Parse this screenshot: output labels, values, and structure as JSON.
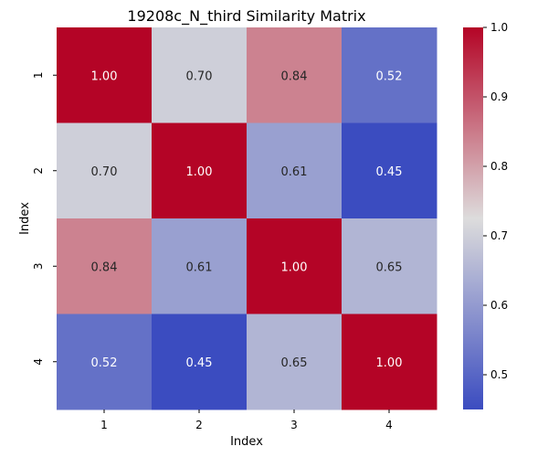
{
  "chart_data": {
    "type": "heatmap",
    "title": "19208c_N_third Similarity Matrix",
    "xlabel": "Index",
    "ylabel": "Index",
    "x_categories": [
      "1",
      "2",
      "3",
      "4"
    ],
    "y_categories": [
      "1",
      "2",
      "3",
      "4"
    ],
    "values": [
      [
        1.0,
        0.7,
        0.84,
        0.52
      ],
      [
        0.7,
        1.0,
        0.61,
        0.45
      ],
      [
        0.84,
        0.61,
        1.0,
        0.65
      ],
      [
        0.52,
        0.45,
        0.65,
        1.0
      ]
    ],
    "value_labels": [
      [
        "1.00",
        "0.70",
        "0.84",
        "0.52"
      ],
      [
        "0.70",
        "1.00",
        "0.61",
        "0.45"
      ],
      [
        "0.84",
        "0.61",
        "1.00",
        "0.65"
      ],
      [
        "0.52",
        "0.45",
        "0.65",
        "1.00"
      ]
    ],
    "colormap": "coolwarm",
    "colorbar": {
      "min": 0.45,
      "max": 1.0,
      "ticks": [
        0.5,
        0.6,
        0.7,
        0.8,
        0.9,
        1.0
      ],
      "tick_labels": [
        "0.5",
        "0.6",
        "0.7",
        "0.8",
        "0.9",
        "1.0"
      ]
    },
    "colors": {
      "low": "#3b4cc0",
      "mid": "#dddcdc",
      "high": "#b40426",
      "label_dark": "#262626",
      "label_light": "#ffffff"
    }
  }
}
